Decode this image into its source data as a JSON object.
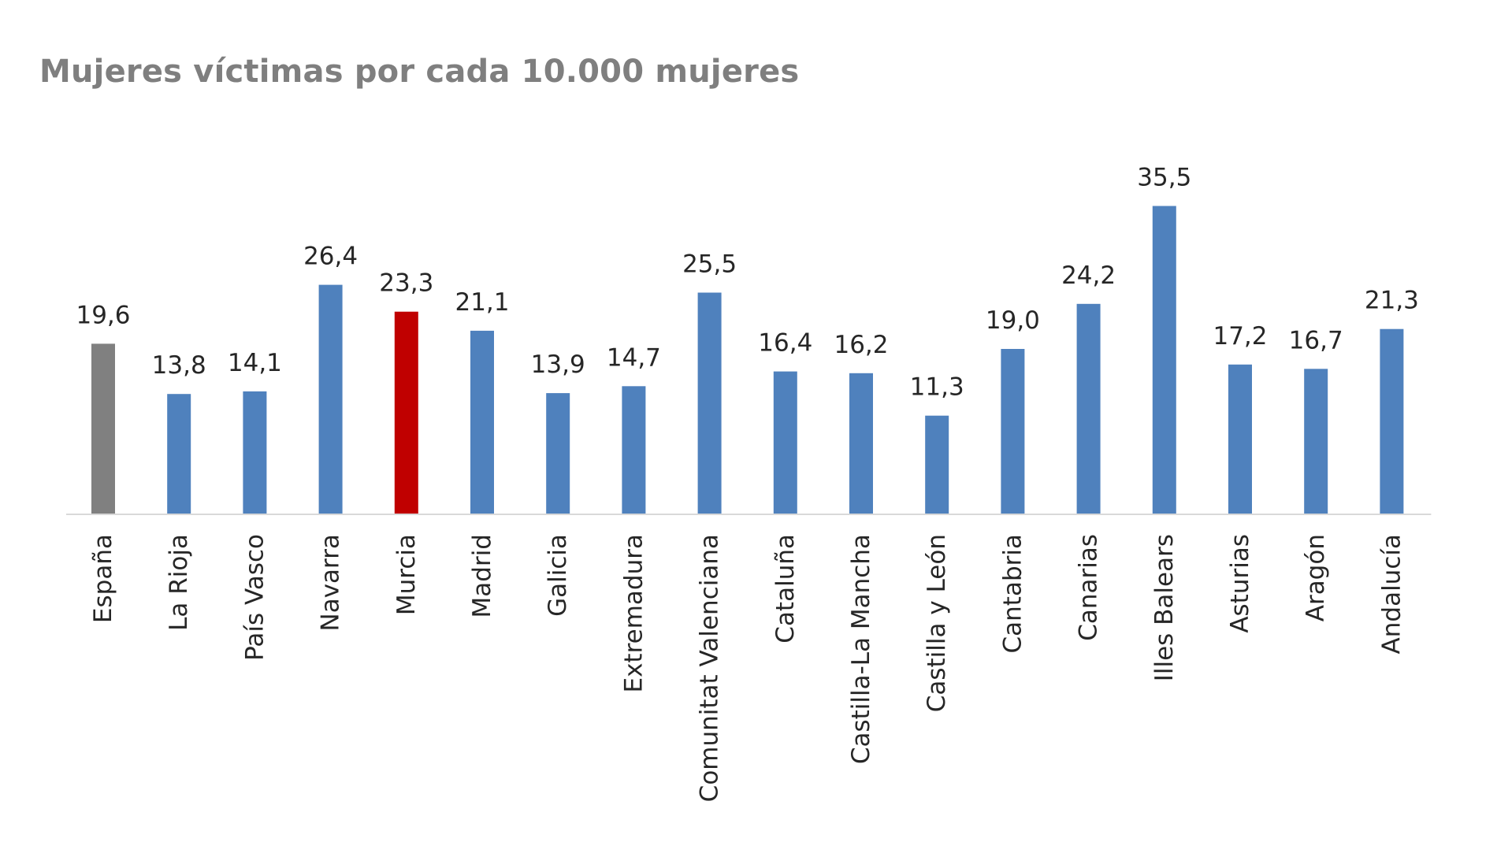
{
  "chart_data": {
    "type": "bar",
    "title": "Mujeres víctimas por cada 10.000 mujeres",
    "xlabel": "",
    "ylabel": "",
    "ylim": [
      0,
      40
    ],
    "grid": false,
    "legend": "none",
    "categories": [
      "España",
      "La Rioja",
      "País Vasco",
      "Navarra",
      "Murcia",
      "Madrid",
      "Galicia",
      "Extremadura",
      "Comunitat Valenciana",
      "Cataluña",
      "Castilla-La Mancha",
      "Castilla y León",
      "Cantabria",
      "Canarias",
      "Illes Balears",
      "Asturias",
      "Aragón",
      "Andalucía"
    ],
    "values": [
      19.6,
      13.8,
      14.1,
      26.4,
      23.3,
      21.1,
      13.9,
      14.7,
      25.5,
      16.4,
      16.2,
      11.3,
      19.0,
      24.2,
      35.5,
      17.2,
      16.7,
      21.3
    ],
    "value_labels": [
      "19,6",
      "13,8",
      "14,1",
      "26,4",
      "23,3",
      "21,1",
      "13,9",
      "14,7",
      "25,5",
      "16,4",
      "16,2",
      "11,3",
      "19,0",
      "24,2",
      "35,5",
      "17,2",
      "16,7",
      "21,3"
    ],
    "highlight": {
      "España": "#808080",
      "Murcia": "#c00000"
    },
    "colors": {
      "default_bar": "#4f81bd",
      "axis_line": "#d9d9d9",
      "title": "#7f7f7f",
      "label_text": "#262626"
    }
  }
}
